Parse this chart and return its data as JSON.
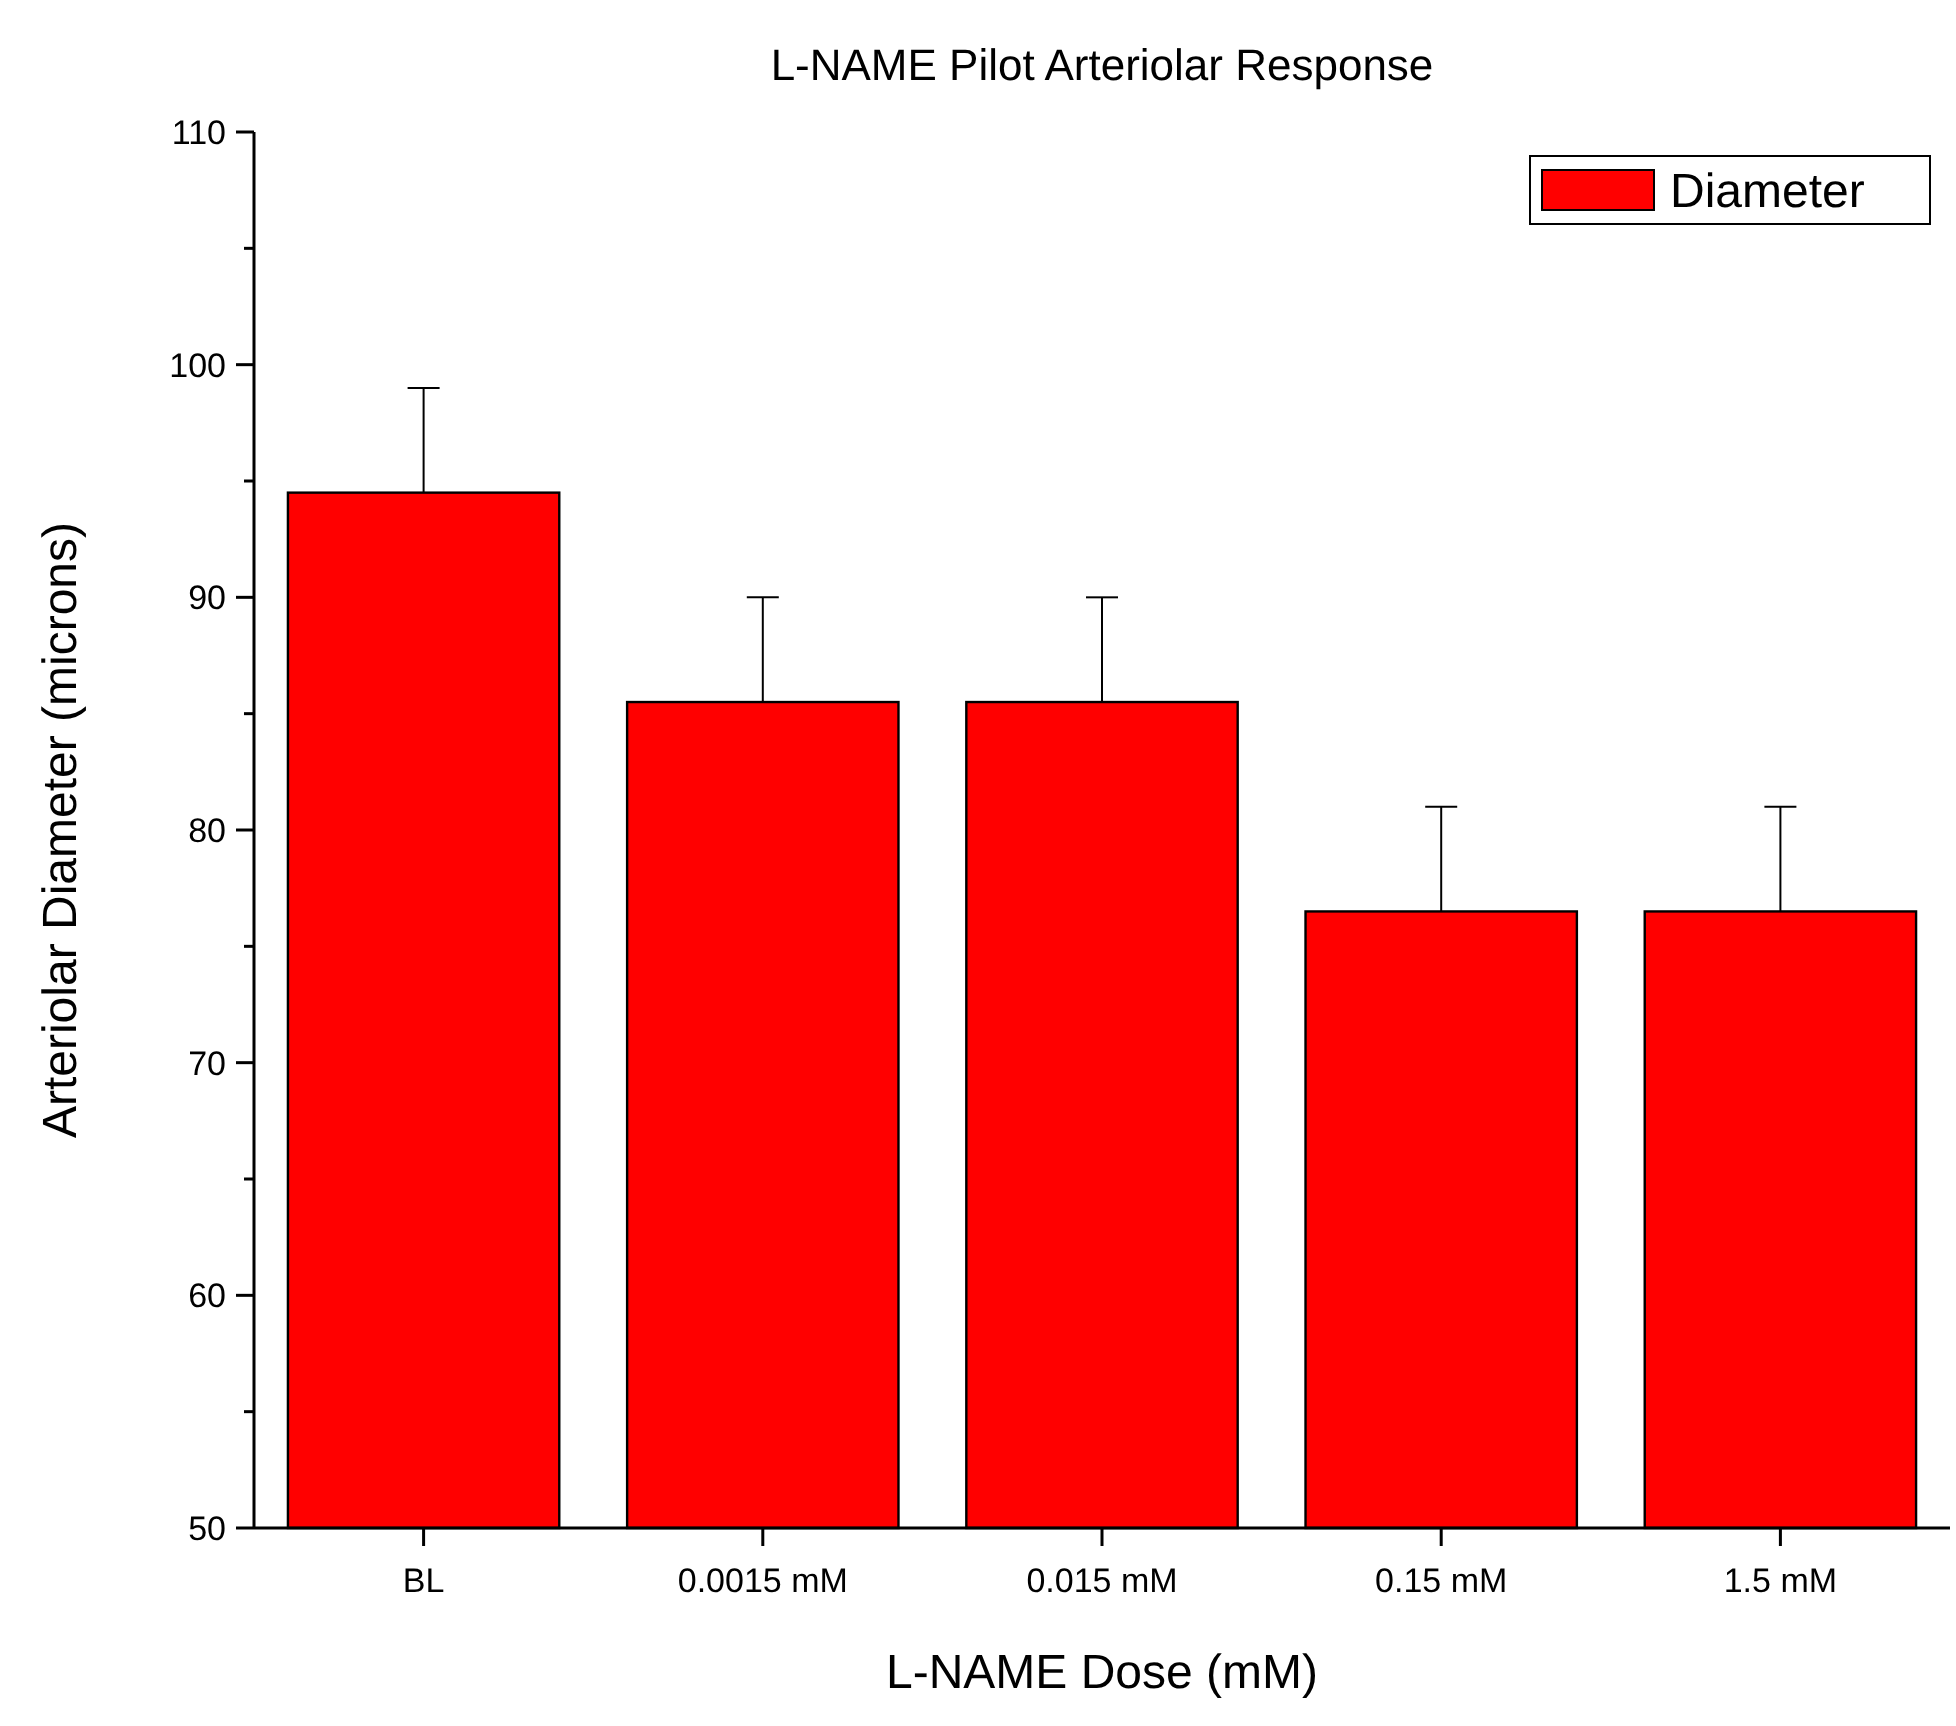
{
  "chart_data": {
    "type": "bar",
    "title": "L-NAME Pilot Arteriolar Response",
    "xlabel": "L-NAME Dose (mM)",
    "ylabel": "Arteriolar Diameter (microns)",
    "categories": [
      "BL",
      "0.0015 mM",
      "0.015 mM",
      "0.15 mM",
      "1.5 mM"
    ],
    "series": [
      {
        "name": "Diameter",
        "color": "#ff0000",
        "values": [
          94.5,
          85.5,
          85.5,
          76.5,
          76.5
        ],
        "errors": [
          [
            94.5,
            99
          ],
          [
            85.5,
            90
          ],
          [
            85.5,
            90
          ],
          [
            76.5,
            81
          ],
          [
            76.5,
            81
          ]
        ]
      }
    ],
    "ylim": [
      50,
      110
    ],
    "yticks": [
      50,
      {
        "value": 55,
        "label": null
      },
      60,
      {
        "value": 65,
        "label": null
      },
      70,
      {
        "value": 75,
        "label": null
      },
      80,
      {
        "value": 85,
        "label": null
      },
      90,
      {
        "value": 95,
        "label": null
      },
      100,
      {
        "value": 105,
        "label": null
      },
      110
    ],
    "grid": false,
    "legend": "top right"
  }
}
